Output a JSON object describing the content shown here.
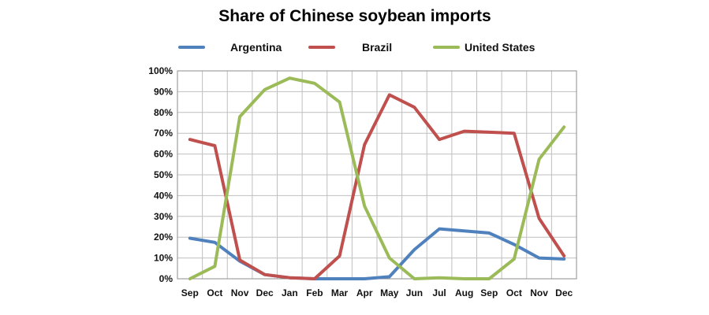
{
  "chart_data": {
    "type": "line",
    "title": "Share of Chinese soybean imports",
    "xlabel": "",
    "ylabel": "",
    "categories": [
      "Sep",
      "Oct",
      "Nov",
      "Dec",
      "Jan",
      "Feb",
      "Mar",
      "Apr",
      "May",
      "Jun",
      "Jul",
      "Aug",
      "Sep",
      "Oct",
      "Nov",
      "Dec"
    ],
    "ylim": [
      0,
      100
    ],
    "y_ticks": [
      "0%",
      "10%",
      "20%",
      "30%",
      "40%",
      "50%",
      "60%",
      "70%",
      "80%",
      "90%",
      "100%"
    ],
    "grid": true,
    "legend_position": "top",
    "series": [
      {
        "name": "Argentina",
        "color": "#4f81bd",
        "values": [
          19.5,
          17.5,
          8.5,
          2,
          0.5,
          0,
          0,
          0,
          1,
          14,
          24,
          23,
          22,
          16.5,
          10,
          9.5
        ]
      },
      {
        "name": "Brazil",
        "color": "#c0504d",
        "values": [
          67,
          64,
          9,
          2,
          0.5,
          0,
          11,
          64.5,
          88.5,
          82.5,
          67,
          71,
          70.5,
          70,
          29,
          11
        ]
      },
      {
        "name": "United States",
        "color": "#9bbb59",
        "values": [
          0,
          6,
          78,
          91,
          96.5,
          94,
          85,
          35,
          10,
          0,
          0.5,
          0,
          0,
          9.5,
          57.5,
          73
        ]
      }
    ]
  }
}
